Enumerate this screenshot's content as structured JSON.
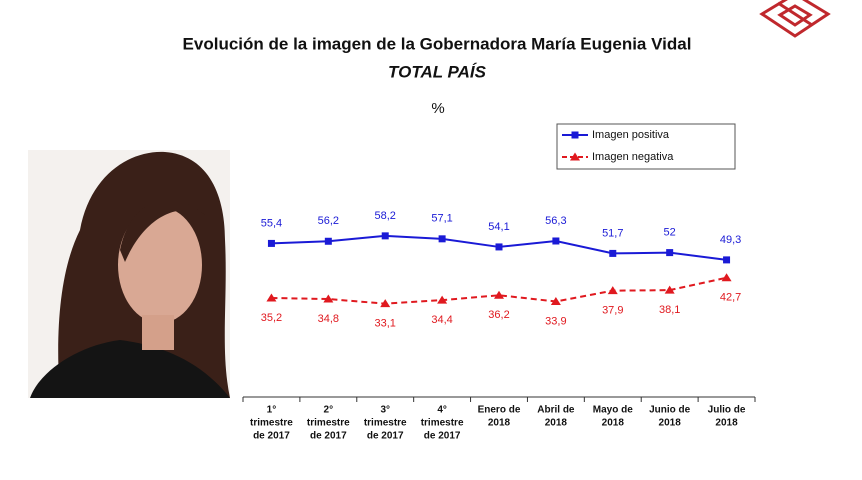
{
  "chart_data": {
    "type": "line",
    "title": "Evolución de la imagen de la Gobernadora María Eugenia Vidal",
    "subtitle": "TOTAL PAÍS",
    "unit": "%",
    "categories": [
      [
        "1°",
        "trimestre",
        "de 2017"
      ],
      [
        "2°",
        "trimestre",
        "de 2017"
      ],
      [
        "3°",
        "trimestre",
        "de 2017"
      ],
      [
        "4°",
        "trimestre",
        "de 2017"
      ],
      [
        "Enero de",
        "2018"
      ],
      [
        "Abril de",
        "2018"
      ],
      [
        "Mayo de",
        "2018"
      ],
      [
        "Junio de",
        "2018"
      ],
      [
        "Julio de",
        "2018"
      ]
    ],
    "series": [
      {
        "name": "Imagen positiva",
        "color": "#1a1ad6",
        "marker": "square",
        "dashed": false,
        "values": [
          55.4,
          56.2,
          58.2,
          57.1,
          54.1,
          56.3,
          51.7,
          52,
          49.3
        ],
        "value_labels": [
          "55,4",
          "56,2",
          "58,2",
          "57,1",
          "54,1",
          "56,3",
          "51,7",
          "52",
          "49,3"
        ]
      },
      {
        "name": "Imagen negativa",
        "color": "#e0191f",
        "marker": "triangle",
        "dashed": true,
        "values": [
          35.2,
          34.8,
          33.1,
          34.4,
          36.2,
          33.9,
          37.9,
          38.1,
          42.7
        ],
        "value_labels": [
          "35,2",
          "34,8",
          "33,1",
          "34,4",
          "36,2",
          "33,9",
          "37,9",
          "38,1",
          "42,7"
        ]
      }
    ]
  }
}
